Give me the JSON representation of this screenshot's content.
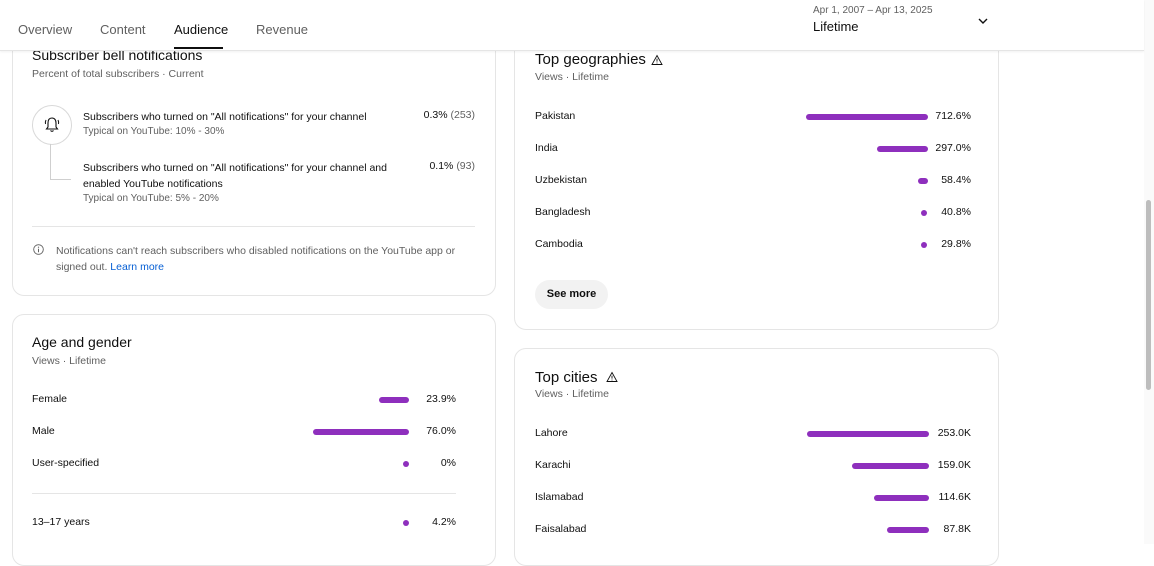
{
  "tabs": [
    {
      "label": "Overview"
    },
    {
      "label": "Content"
    },
    {
      "label": "Audience"
    },
    {
      "label": "Revenue"
    }
  ],
  "date_picker": {
    "range": "Apr 1, 2007 – Apr 13, 2025",
    "label": "Lifetime"
  },
  "bell": {
    "title": "Subscriber bell notifications",
    "subtitle": "Percent of total subscribers · Current",
    "row1": {
      "text": "Subscribers who turned on \"All notifications\" for your channel",
      "typical": "Typical on YouTube: 10% - 30%",
      "value": "0.3%",
      "count": "(253)"
    },
    "row2": {
      "text_line1": "Subscribers who turned on \"All notifications\" for your channel and",
      "text_line2": "enabled YouTube notifications",
      "typical": "Typical on YouTube: 5% - 20%",
      "value": "0.1%",
      "count": "(93)"
    },
    "info": "Notifications can't reach subscribers who disabled notifications on the YouTube app or signed out.",
    "learn_more": "Learn more"
  },
  "age_gender": {
    "title": "Age and gender",
    "subtitle": "Views · Lifetime",
    "rows": [
      {
        "label": "Female",
        "value": "23.9%",
        "pct": 23.9
      },
      {
        "label": "Male",
        "value": "76.0%",
        "pct": 76.0
      },
      {
        "label": "User-specified",
        "value": "0%",
        "pct": 0
      },
      {
        "label": "13–17 years",
        "value": "4.2%",
        "pct": 4.2
      }
    ]
  },
  "geographies": {
    "title": "Top geographies",
    "subtitle": "Views · Lifetime",
    "rows": [
      {
        "label": "Pakistan",
        "value": "712.6%",
        "pct": 712.6
      },
      {
        "label": "India",
        "value": "297.0%",
        "pct": 297.0
      },
      {
        "label": "Uzbekistan",
        "value": "58.4%",
        "pct": 58.4
      },
      {
        "label": "Bangladesh",
        "value": "40.8%",
        "pct": 40.8
      },
      {
        "label": "Cambodia",
        "value": "29.8%",
        "pct": 29.8
      }
    ],
    "see_more": "See more"
  },
  "cities": {
    "title": "Top cities",
    "subtitle": "Views · Lifetime",
    "rows": [
      {
        "label": "Lahore",
        "value": "253.0K",
        "num": 253.0
      },
      {
        "label": "Karachi",
        "value": "159.0K",
        "num": 159.0
      },
      {
        "label": "Islamabad",
        "value": "114.6K",
        "num": 114.6
      },
      {
        "label": "Faisalabad",
        "value": "87.8K",
        "num": 87.8
      }
    ]
  },
  "colors": {
    "bar": "#8e2fbd",
    "link": "#065fd4"
  }
}
